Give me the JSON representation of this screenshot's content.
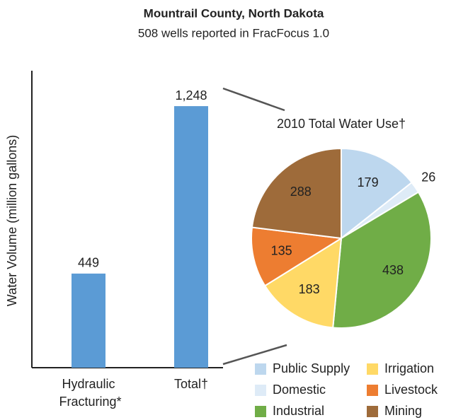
{
  "chart_data": [
    {
      "type": "bar",
      "title": "Mountrail County, North Dakota",
      "subtitle": "508 wells reported in FracFocus 1.0",
      "ylabel": "Water Volume (million gallons)",
      "categories": [
        "Hydraulic Fracturing*",
        "Total†"
      ],
      "values": [
        449,
        1248
      ],
      "value_labels": [
        "449",
        "1,248"
      ],
      "color": "#5b9bd5",
      "ylim": [
        0,
        1417
      ]
    },
    {
      "type": "pie",
      "title": "2010 Total Water Use†",
      "categories": [
        "Public Supply",
        "Domestic",
        "Industrial",
        "Irrigation",
        "Livestock",
        "Mining"
      ],
      "values": [
        179,
        26,
        438,
        183,
        135,
        288
      ],
      "colors": [
        "#bdd7ee",
        "#deebf7",
        "#70ad47",
        "#ffd966",
        "#ed7d31",
        "#9e6b3a"
      ]
    }
  ]
}
